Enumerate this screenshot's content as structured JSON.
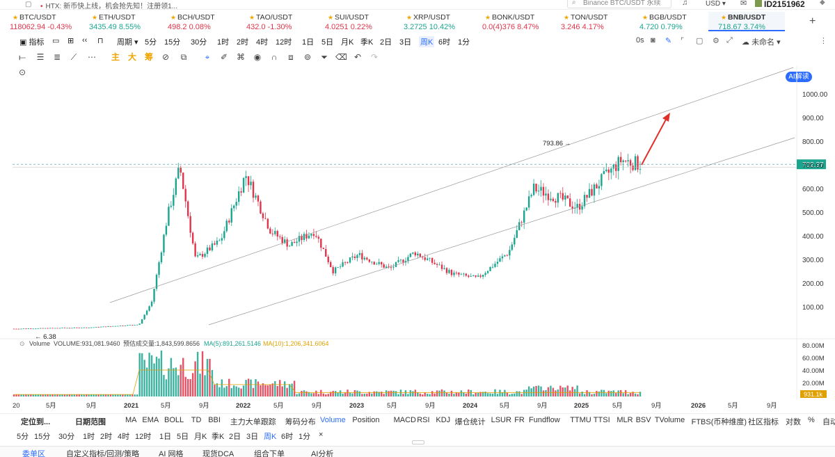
{
  "topbar": {
    "news": "HTX: 新币快上线，机会抢先知！注册领1...",
    "search_placeholder": "Binance BTC/USDT 永续",
    "currency": "USD",
    "user_id": "ID2151962"
  },
  "tickers": [
    {
      "name": "BTC/USDT",
      "price": "118062.94",
      "change": "-0.43%",
      "dir": "dn"
    },
    {
      "name": "ETH/USDT",
      "price": "3435.49",
      "change": "8.55%",
      "dir": "up"
    },
    {
      "name": "BCH/USDT",
      "price": "498.2",
      "change": "0.08%",
      "dir": "dn"
    },
    {
      "name": "TAO/USDT",
      "price": "432.0",
      "change": "-1.30%",
      "dir": "dn"
    },
    {
      "name": "SUI/USDT",
      "price": "4.0251",
      "change": "0.22%",
      "dir": "dn"
    },
    {
      "name": "XRP/USDT",
      "price": "3.2725",
      "change": "10.42%",
      "dir": "up"
    },
    {
      "name": "BONK/USDT",
      "price": "0.0(4)376",
      "change": "8.47%",
      "dir": "dn"
    },
    {
      "name": "TON/USDT",
      "price": "3.246",
      "change": "4.17%",
      "dir": "dn"
    },
    {
      "name": "BGB/USDT",
      "price": "4.720",
      "change": "0.79%",
      "dir": "up"
    },
    {
      "name": "BNB/USDT",
      "price": "718.67",
      "change": "3.74%",
      "dir": "up"
    }
  ],
  "toolbar": {
    "indicators": "指标",
    "period": "周期",
    "intervals": [
      "5分",
      "15分",
      "30分",
      "1时",
      "2时",
      "4时",
      "12时",
      "1日",
      "5日",
      "月K",
      "季K",
      "2日",
      "3日",
      "周K",
      "6时",
      "1分"
    ],
    "selected_interval": "周K",
    "timer": "0s",
    "layout_name": "未命名",
    "ai_button": "AI解读"
  },
  "draw_toolbar": {
    "labels": [
      "主",
      "大",
      "筹"
    ]
  },
  "chart_data": {
    "type": "candlestick",
    "symbol": "BNB/USDT",
    "price_axis_ticks": [
      "1000.00",
      "900.00",
      "800.00",
      "700.00",
      "600.00",
      "500.00",
      "400.00",
      "300.00",
      "200.00",
      "100.00"
    ],
    "price_min": 0,
    "price_max": 1000,
    "last_price_label": "702.37",
    "high_label": "793.86",
    "low_label": "6.38",
    "time_axis_ticks": [
      "20",
      "5月",
      "9月",
      "2021",
      "5月",
      "9月",
      "2022",
      "5月",
      "9月",
      "2023",
      "5月",
      "9月",
      "2024",
      "5月",
      "9月",
      "2025",
      "5月",
      "9月",
      "2026",
      "5月",
      "9月"
    ],
    "keypoints": [
      {
        "t": 0,
        "p": 7
      },
      {
        "t": 0.12,
        "p": 12
      },
      {
        "t": 0.2,
        "p": 25
      },
      {
        "t": 0.22,
        "p": 120
      },
      {
        "t": 0.245,
        "p": 480
      },
      {
        "t": 0.265,
        "p": 690
      },
      {
        "t": 0.29,
        "p": 300
      },
      {
        "t": 0.33,
        "p": 380
      },
      {
        "t": 0.37,
        "p": 660
      },
      {
        "t": 0.41,
        "p": 420
      },
      {
        "t": 0.44,
        "p": 360
      },
      {
        "t": 0.48,
        "p": 420
      },
      {
        "t": 0.51,
        "p": 250
      },
      {
        "t": 0.55,
        "p": 320
      },
      {
        "t": 0.6,
        "p": 260
      },
      {
        "t": 0.64,
        "p": 330
      },
      {
        "t": 0.7,
        "p": 240
      },
      {
        "t": 0.74,
        "p": 220
      },
      {
        "t": 0.79,
        "p": 330
      },
      {
        "t": 0.83,
        "p": 600
      },
      {
        "t": 0.87,
        "p": 560
      },
      {
        "t": 0.9,
        "p": 520
      },
      {
        "t": 0.94,
        "p": 640
      },
      {
        "t": 0.97,
        "p": 720
      },
      {
        "t": 1.0,
        "p": 702
      }
    ],
    "volume_panel": {
      "label": "Volume",
      "volume": "VOLUME:931,081.9460",
      "estimated": "预估成交量:1,843,599.8656",
      "ma5": "MA(5):891,261.5146",
      "ma10": "MA(10):1,206,341.6064",
      "axis_ticks": [
        "80.00M",
        "60.00M",
        "40.00M",
        "20.00M"
      ],
      "last_label": "931.1k"
    }
  },
  "bottom_indicators": {
    "locate": "定位到...",
    "date_range": "日期范围",
    "main": [
      "MA",
      "EMA",
      "BOLL",
      "TD",
      "BBI",
      "主力大单跟踪",
      "筹码分布"
    ],
    "sub": [
      "Volume",
      "Position",
      "MACD",
      "RSI",
      "KDJ",
      "爆仓统计",
      "LSUR",
      "FR",
      "Fundflow",
      "TTMU",
      "TTSI",
      "MLR",
      "BSV",
      "TVolume",
      "FTBS(币种维度)"
    ],
    "right": [
      "社区指标",
      "对数",
      "%",
      "自动"
    ]
  },
  "bottom_intervals": [
    "5分",
    "15分",
    "30分",
    "1时",
    "2时",
    "4时",
    "12时",
    "1日",
    "5日",
    "月K",
    "季K",
    "2日",
    "3日",
    "周K",
    "6时",
    "1分"
  ],
  "bottom_tabs": [
    "委单区",
    "自定义指标/回测/策略",
    "AI 网格",
    "现货DCA",
    "组合下单",
    "AI分析"
  ],
  "colors": {
    "up": "#1aa58f",
    "down": "#e0344a",
    "accent": "#2b6cff",
    "arrow": "#e0302a"
  }
}
